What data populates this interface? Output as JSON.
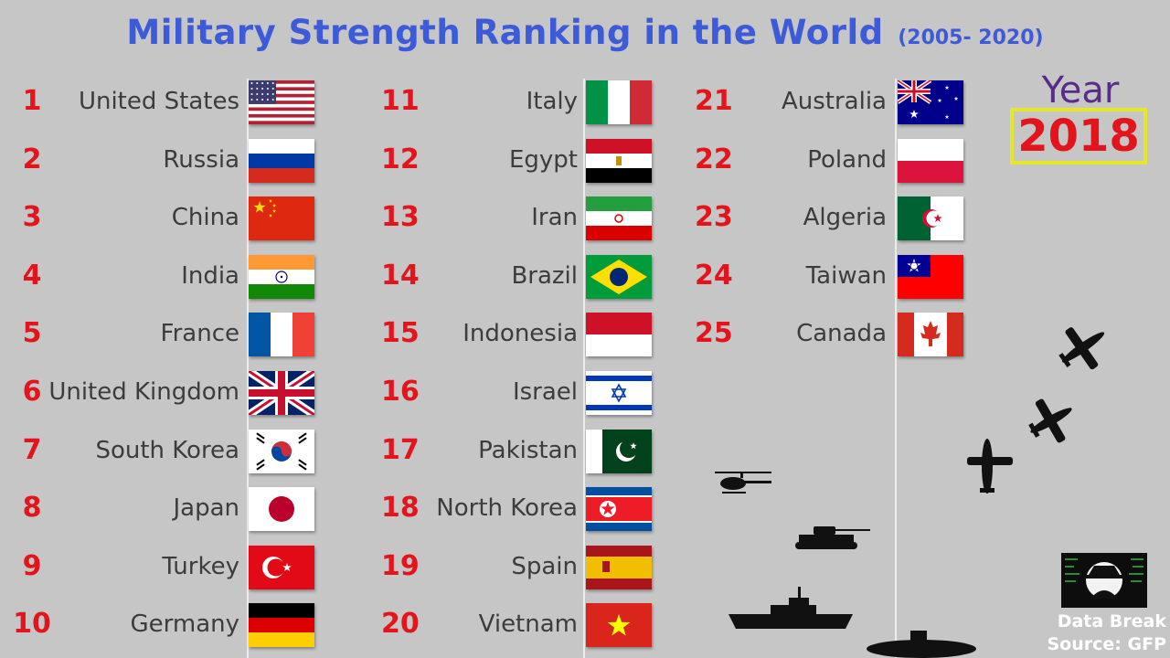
{
  "title": {
    "main": "Military Strength Ranking in the World",
    "period": "(2005- 2020)"
  },
  "year_label": "Year",
  "year_value": "2018",
  "brand": {
    "name": "Data Break",
    "source": "Source: GFP"
  },
  "rankings": [
    {
      "rank": "1",
      "country": "United States",
      "flag": "us-flag"
    },
    {
      "rank": "2",
      "country": "Russia",
      "flag": "russia-flag"
    },
    {
      "rank": "3",
      "country": "China",
      "flag": "china-flag"
    },
    {
      "rank": "4",
      "country": "India",
      "flag": "india-flag"
    },
    {
      "rank": "5",
      "country": "France",
      "flag": "france-flag"
    },
    {
      "rank": "6",
      "country": "United Kingdom",
      "flag": "uk-flag"
    },
    {
      "rank": "7",
      "country": "South Korea",
      "flag": "south-korea-flag"
    },
    {
      "rank": "8",
      "country": "Japan",
      "flag": "japan-flag"
    },
    {
      "rank": "9",
      "country": "Turkey",
      "flag": "turkey-flag"
    },
    {
      "rank": "10",
      "country": "Germany",
      "flag": "germany-flag"
    },
    {
      "rank": "11",
      "country": "Italy",
      "flag": "italy-flag"
    },
    {
      "rank": "12",
      "country": "Egypt",
      "flag": "egypt-flag"
    },
    {
      "rank": "13",
      "country": "Iran",
      "flag": "iran-flag"
    },
    {
      "rank": "14",
      "country": "Brazil",
      "flag": "brazil-flag"
    },
    {
      "rank": "15",
      "country": "Indonesia",
      "flag": "indonesia-flag"
    },
    {
      "rank": "16",
      "country": "Israel",
      "flag": "israel-flag"
    },
    {
      "rank": "17",
      "country": "Pakistan",
      "flag": "pakistan-flag"
    },
    {
      "rank": "18",
      "country": "North Korea",
      "flag": "north-korea-flag"
    },
    {
      "rank": "19",
      "country": "Spain",
      "flag": "spain-flag"
    },
    {
      "rank": "20",
      "country": "Vietnam",
      "flag": "vietnam-flag"
    },
    {
      "rank": "21",
      "country": "Australia",
      "flag": "australia-flag"
    },
    {
      "rank": "22",
      "country": "Poland",
      "flag": "poland-flag"
    },
    {
      "rank": "23",
      "country": "Algeria",
      "flag": "algeria-flag"
    },
    {
      "rank": "24",
      "country": "Taiwan",
      "flag": "taiwan-flag"
    },
    {
      "rank": "25",
      "country": "Canada",
      "flag": "canada-flag"
    }
  ],
  "colors": {
    "title": "#3d5bd8",
    "rank": "#e3141b",
    "year_box_border": "#e6e62a",
    "year_label": "#5a2c8a"
  },
  "decorations": [
    "airplane-icon",
    "airplane-icon",
    "airplane-icon",
    "helicopter-icon",
    "tank-icon",
    "warship-icon",
    "submarine-icon"
  ]
}
